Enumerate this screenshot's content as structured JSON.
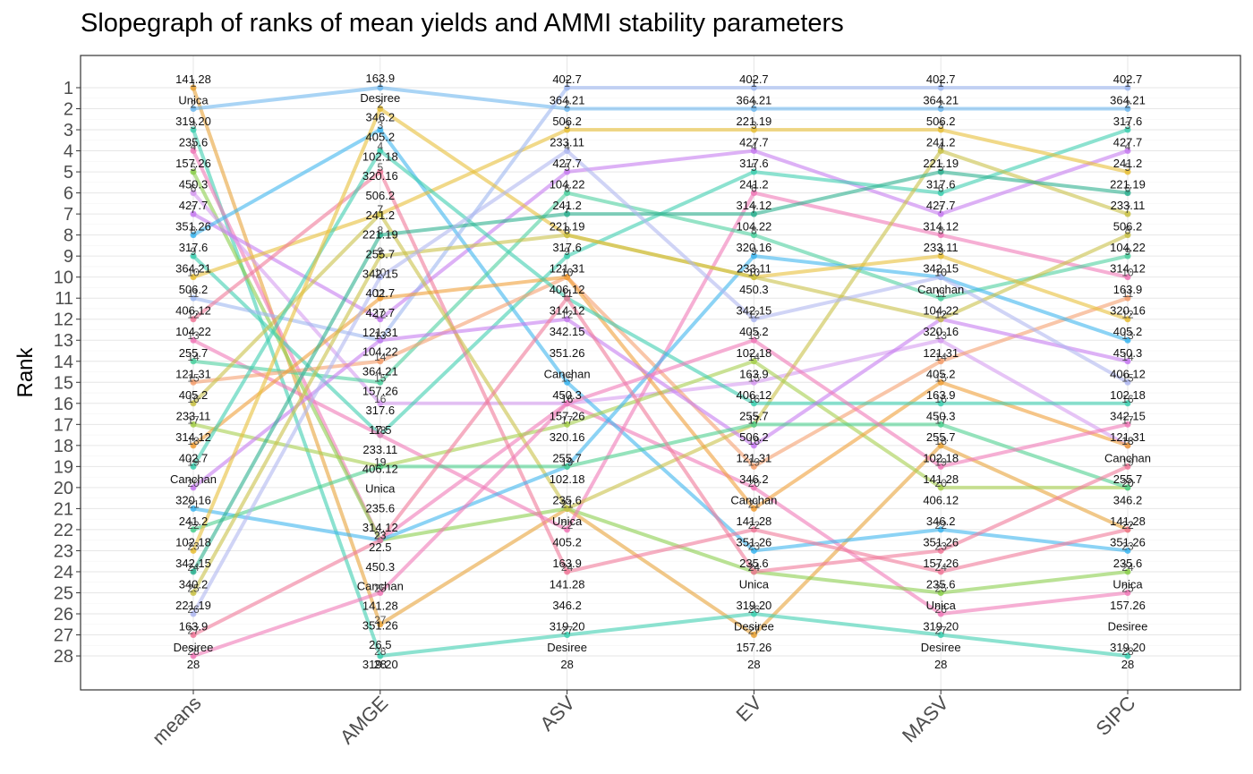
{
  "chart_data": {
    "type": "line",
    "title": "Slopegraph of ranks of mean yields and AMMI stability parameters",
    "xlabel": "",
    "ylabel": "Rank",
    "categories": [
      "means",
      "AMGE",
      "ASV",
      "EV",
      "MASV",
      "SIPC"
    ],
    "y_ticks": [
      "1",
      "2",
      "3",
      "4",
      "5",
      "6",
      "7",
      "8",
      "9",
      "10",
      "11",
      "12",
      "13",
      "14",
      "15",
      "16",
      "17",
      "18",
      "19",
      "20",
      "21",
      "22",
      "23",
      "24",
      "25",
      "26",
      "27",
      "28"
    ],
    "ylim": [
      1,
      28
    ],
    "y_reversed": true,
    "grid": true,
    "legend": "none",
    "series": [
      {
        "values": [
          1,
          26.5,
          21,
          27,
          18,
          22
        ],
        "color": "#e8a33a"
      },
      {
        "values": [
          2,
          1,
          2,
          2,
          2,
          2
        ],
        "color": "#6fb8ef"
      },
      {
        "values": [
          3,
          28,
          27,
          26,
          27,
          28
        ],
        "color": "#3fcfb0"
      },
      {
        "values": [
          4,
          22.5,
          16,
          20,
          26,
          25
        ],
        "color": "#f07ab8"
      },
      {
        "values": [
          5,
          22.5,
          21,
          24,
          25,
          24
        ],
        "color": "#8ccf4e"
      },
      {
        "values": [
          6,
          16,
          16,
          15,
          13,
          18
        ],
        "color": "#d69cf0"
      },
      {
        "values": [
          7,
          12,
          5,
          4,
          7,
          4
        ],
        "color": "#c77df0"
      },
      {
        "values": [
          8,
          3,
          15,
          23,
          22,
          23
        ],
        "color": "#3fb6ef"
      },
      {
        "values": [
          9,
          17.5,
          9,
          5,
          6,
          3
        ],
        "color": "#3fcfb0"
      },
      {
        "values": [
          10,
          7,
          3,
          3,
          3,
          5
        ],
        "color": "#e8c03a"
      },
      {
        "values": [
          11,
          13,
          1,
          1,
          1,
          1
        ],
        "color": "#9fb8f0"
      },
      {
        "values": [
          12,
          5,
          24,
          22,
          24,
          22
        ],
        "color": "#f07a9a"
      },
      {
        "values": [
          13,
          17.5,
          22,
          6,
          8,
          10
        ],
        "color": "#f07ab8"
      },
      {
        "values": [
          14,
          15,
          6,
          8,
          11,
          9
        ],
        "color": "#4fd0a0"
      },
      {
        "values": [
          15,
          14,
          10,
          19,
          14,
          11
        ],
        "color": "#f5a070"
      },
      {
        "values": [
          16,
          7,
          21,
          17,
          4,
          7
        ],
        "color": "#c9c24a"
      },
      {
        "values": [
          17,
          19,
          17,
          14,
          20,
          20
        ],
        "color": "#a6cf4e"
      },
      {
        "values": [
          18,
          11,
          10,
          21,
          15,
          18
        ],
        "color": "#f0a03a"
      },
      {
        "values": [
          19,
          4,
          11,
          16,
          16,
          16
        ],
        "color": "#3fcfb0"
      },
      {
        "values": [
          20,
          13,
          12,
          18,
          12,
          14
        ],
        "color": "#c77df0"
      },
      {
        "values": [
          21,
          22.5,
          19,
          9,
          10,
          13
        ],
        "color": "#3fb6ef"
      },
      {
        "values": [
          22,
          19,
          19,
          17,
          17,
          20
        ],
        "color": "#4fd090"
      },
      {
        "values": [
          23,
          2,
          8,
          10,
          9,
          12
        ],
        "color": "#e8c03a"
      },
      {
        "values": [
          24,
          8,
          7,
          7,
          5,
          6
        ],
        "color": "#2fb090"
      },
      {
        "values": [
          25,
          9,
          8,
          10,
          12,
          8
        ],
        "color": "#c9c24a"
      },
      {
        "values": [
          26,
          10,
          4,
          12,
          10,
          15
        ],
        "color": "#b0b8f0"
      },
      {
        "values": [
          27,
          22.5,
          11,
          24,
          23,
          19
        ],
        "color": "#f07a9a"
      },
      {
        "values": [
          28,
          25,
          16,
          13,
          19,
          17
        ],
        "color": "#f07ab8"
      }
    ],
    "columns": [
      {
        "name": "means",
        "labels": [
          {
            "y": 1,
            "text": "141.28"
          },
          {
            "y": 2,
            "text": "Unica"
          },
          {
            "y": 3,
            "text": "319.20"
          },
          {
            "y": 4,
            "text": "235.6"
          },
          {
            "y": 5,
            "text": "157.26"
          },
          {
            "y": 6,
            "text": "450.3"
          },
          {
            "y": 7,
            "text": "427.7"
          },
          {
            "y": 8,
            "text": "351.26"
          },
          {
            "y": 9,
            "text": "317.6"
          },
          {
            "y": 10,
            "text": "364.21"
          },
          {
            "y": 11,
            "text": "506.2"
          },
          {
            "y": 12,
            "text": "406.12"
          },
          {
            "y": 13,
            "text": "104.22"
          },
          {
            "y": 14,
            "text": "255.7"
          },
          {
            "y": 15,
            "text": "121.31"
          },
          {
            "y": 16,
            "text": "405.2"
          },
          {
            "y": 17,
            "text": "233.11"
          },
          {
            "y": 18,
            "text": "314.12"
          },
          {
            "y": 19,
            "text": "402.7"
          },
          {
            "y": 20,
            "text": "Canchan"
          },
          {
            "y": 21,
            "text": "320.16"
          },
          {
            "y": 22,
            "text": "241.2"
          },
          {
            "y": 23,
            "text": "102.18"
          },
          {
            "y": 24,
            "text": "342.15"
          },
          {
            "y": 25,
            "text": "340.2"
          },
          {
            "y": 26,
            "text": "221.19"
          },
          {
            "y": 27,
            "text": "163.9"
          },
          {
            "y": 28,
            "text": "Desiree"
          }
        ]
      },
      {
        "name": "AMGE",
        "labels": [
          {
            "y": 1,
            "text": "163.9"
          },
          {
            "y": 2,
            "text": "Desiree"
          },
          {
            "y": 3,
            "text": "346.2"
          },
          {
            "y": 4,
            "text": "405.2"
          },
          {
            "y": 5,
            "text": "102.18"
          },
          {
            "y": 6,
            "text": "320.16"
          },
          {
            "y": 7,
            "text": "506.2"
          },
          {
            "y": 8,
            "text": "241.2"
          },
          {
            "y": 9,
            "text": "221.19"
          },
          {
            "y": 10,
            "text": "255.7"
          },
          {
            "y": 11,
            "text": "342.15"
          },
          {
            "y": 12,
            "text": "402.7"
          },
          {
            "y": 13,
            "text": "427.7"
          },
          {
            "y": 14,
            "text": "121.31"
          },
          {
            "y": 15,
            "text": "104.22"
          },
          {
            "y": 16,
            "text": "364.21"
          },
          {
            "y": 17,
            "text": "157.26"
          },
          {
            "y": 18,
            "text": "317.6"
          },
          {
            "y": 19,
            "text": "17.5"
          },
          {
            "y": 20,
            "text": "233.11"
          },
          {
            "y": 21,
            "text": "406.12"
          },
          {
            "y": 22,
            "text": "Unica"
          },
          {
            "y": 23,
            "text": "235.6"
          },
          {
            "y": 24,
            "text": "314.12"
          },
          {
            "y": 25,
            "text": "22.5"
          },
          {
            "y": 26,
            "text": "450.3"
          },
          {
            "y": 27,
            "text": "Canchan"
          },
          {
            "y": 28,
            "text": "141.28"
          },
          {
            "y": 29,
            "text": "351.26"
          },
          {
            "y": 30,
            "text": "26.5"
          },
          {
            "y": 31,
            "text": "319.20"
          }
        ]
      },
      {
        "name": "ASV",
        "labels": [
          {
            "y": 1,
            "text": "402.7"
          },
          {
            "y": 2,
            "text": "364.21"
          },
          {
            "y": 3,
            "text": "506.2"
          },
          {
            "y": 4,
            "text": "233.11"
          },
          {
            "y": 5,
            "text": "427.7"
          },
          {
            "y": 6,
            "text": "104.22"
          },
          {
            "y": 7,
            "text": "241.2"
          },
          {
            "y": 8,
            "text": "221.19"
          },
          {
            "y": 9,
            "text": "317.6"
          },
          {
            "y": 10,
            "text": "121.31"
          },
          {
            "y": 11,
            "text": "406.12"
          },
          {
            "y": 12,
            "text": "314.12"
          },
          {
            "y": 13,
            "text": "342.15"
          },
          {
            "y": 14,
            "text": "351.26"
          },
          {
            "y": 15,
            "text": "Canchan"
          },
          {
            "y": 16,
            "text": "450.3"
          },
          {
            "y": 17,
            "text": "157.26"
          },
          {
            "y": 18,
            "text": "320.16"
          },
          {
            "y": 19,
            "text": "255.7"
          },
          {
            "y": 20,
            "text": "102.18"
          },
          {
            "y": 21,
            "text": "235.6"
          },
          {
            "y": 22,
            "text": "Unica"
          },
          {
            "y": 23,
            "text": "405.2"
          },
          {
            "y": 24,
            "text": "163.9"
          },
          {
            "y": 25,
            "text": "141.28"
          },
          {
            "y": 26,
            "text": "346.2"
          },
          {
            "y": 27,
            "text": "319.20"
          },
          {
            "y": 28,
            "text": "Desiree"
          }
        ]
      },
      {
        "name": "EV",
        "labels": [
          {
            "y": 1,
            "text": "402.7"
          },
          {
            "y": 2,
            "text": "364.21"
          },
          {
            "y": 3,
            "text": "221.19"
          },
          {
            "y": 4,
            "text": "427.7"
          },
          {
            "y": 5,
            "text": "317.6"
          },
          {
            "y": 6,
            "text": "241.2"
          },
          {
            "y": 7,
            "text": "314.12"
          },
          {
            "y": 8,
            "text": "104.22"
          },
          {
            "y": 9,
            "text": "320.16"
          },
          {
            "y": 10,
            "text": "233.11"
          },
          {
            "y": 11,
            "text": "450.3"
          },
          {
            "y": 12,
            "text": "342.15"
          },
          {
            "y": 13,
            "text": "405.2"
          },
          {
            "y": 14,
            "text": "102.18"
          },
          {
            "y": 15,
            "text": "163.9"
          },
          {
            "y": 16,
            "text": "406.12"
          },
          {
            "y": 17,
            "text": "255.7"
          },
          {
            "y": 18,
            "text": "506.2"
          },
          {
            "y": 19,
            "text": "121.31"
          },
          {
            "y": 20,
            "text": "346.2"
          },
          {
            "y": 21,
            "text": "Canchan"
          },
          {
            "y": 22,
            "text": "141.28"
          },
          {
            "y": 23,
            "text": "351.26"
          },
          {
            "y": 24,
            "text": "235.6"
          },
          {
            "y": 25,
            "text": "Unica"
          },
          {
            "y": 26,
            "text": "319.20"
          },
          {
            "y": 27,
            "text": "Desiree"
          },
          {
            "y": 28,
            "text": "157.26"
          }
        ]
      },
      {
        "name": "MASV",
        "labels": [
          {
            "y": 1,
            "text": "402.7"
          },
          {
            "y": 2,
            "text": "364.21"
          },
          {
            "y": 3,
            "text": "506.2"
          },
          {
            "y": 4,
            "text": "241.2"
          },
          {
            "y": 5,
            "text": "221.19"
          },
          {
            "y": 6,
            "text": "317.6"
          },
          {
            "y": 7,
            "text": "427.7"
          },
          {
            "y": 8,
            "text": "314.12"
          },
          {
            "y": 9,
            "text": "233.11"
          },
          {
            "y": 10,
            "text": "342.15"
          },
          {
            "y": 11,
            "text": "Canchan"
          },
          {
            "y": 12,
            "text": "104.22"
          },
          {
            "y": 13,
            "text": "320.16"
          },
          {
            "y": 14,
            "text": "121.31"
          },
          {
            "y": 15,
            "text": "405.2"
          },
          {
            "y": 16,
            "text": "163.9"
          },
          {
            "y": 17,
            "text": "450.3"
          },
          {
            "y": 18,
            "text": "255.7"
          },
          {
            "y": 19,
            "text": "102.18"
          },
          {
            "y": 20,
            "text": "141.28"
          },
          {
            "y": 21,
            "text": "406.12"
          },
          {
            "y": 22,
            "text": "346.2"
          },
          {
            "y": 23,
            "text": "351.26"
          },
          {
            "y": 24,
            "text": "157.26"
          },
          {
            "y": 25,
            "text": "235.6"
          },
          {
            "y": 26,
            "text": "Unica"
          },
          {
            "y": 27,
            "text": "319.20"
          },
          {
            "y": 28,
            "text": "Desiree"
          }
        ]
      },
      {
        "name": "SIPC",
        "labels": [
          {
            "y": 1,
            "text": "402.7"
          },
          {
            "y": 2,
            "text": "364.21"
          },
          {
            "y": 3,
            "text": "317.6"
          },
          {
            "y": 4,
            "text": "427.7"
          },
          {
            "y": 5,
            "text": "241.2"
          },
          {
            "y": 6,
            "text": "221.19"
          },
          {
            "y": 7,
            "text": "233.11"
          },
          {
            "y": 8,
            "text": "506.2"
          },
          {
            "y": 9,
            "text": "104.22"
          },
          {
            "y": 10,
            "text": "314.12"
          },
          {
            "y": 11,
            "text": "163.9"
          },
          {
            "y": 12,
            "text": "320.16"
          },
          {
            "y": 13,
            "text": "405.2"
          },
          {
            "y": 14,
            "text": "450.3"
          },
          {
            "y": 15,
            "text": "406.12"
          },
          {
            "y": 16,
            "text": "102.18"
          },
          {
            "y": 17,
            "text": "342.15"
          },
          {
            "y": 18,
            "text": "121.31"
          },
          {
            "y": 19,
            "text": "Canchan"
          },
          {
            "y": 20,
            "text": "255.7"
          },
          {
            "y": 21,
            "text": "346.2"
          },
          {
            "y": 22,
            "text": "141.28"
          },
          {
            "y": 23,
            "text": "351.26"
          },
          {
            "y": 24,
            "text": "235.6"
          },
          {
            "y": 25,
            "text": "Unica"
          },
          {
            "y": 26,
            "text": "157.26"
          },
          {
            "y": 27,
            "text": "Desiree"
          },
          {
            "y": 28,
            "text": "319.20"
          }
        ]
      }
    ]
  }
}
